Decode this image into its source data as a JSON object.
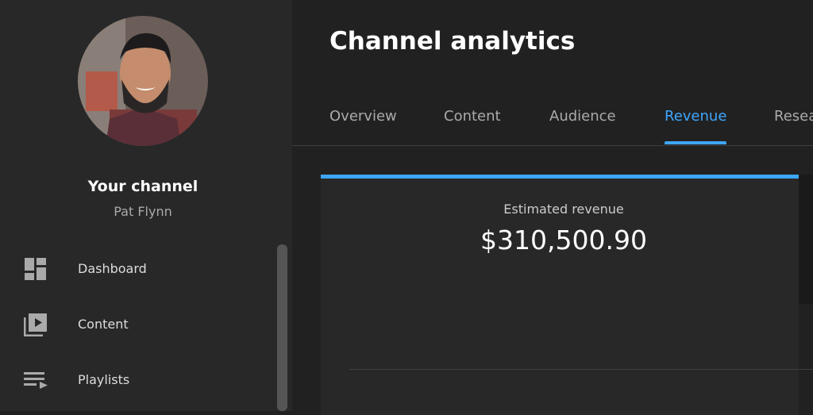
{
  "sidebar": {
    "channel_label": "Your channel",
    "channel_name": "Pat Flynn",
    "nav": [
      "Dashboard",
      "Content",
      "Playlists"
    ]
  },
  "header": {
    "title": "Channel analytics"
  },
  "tabs": {
    "items": [
      "Overview",
      "Content",
      "Audience",
      "Revenue",
      "Research"
    ],
    "active": "Revenue"
  },
  "card": {
    "metric_label": "Estimated revenue",
    "metric_value": "$310,500.90"
  }
}
